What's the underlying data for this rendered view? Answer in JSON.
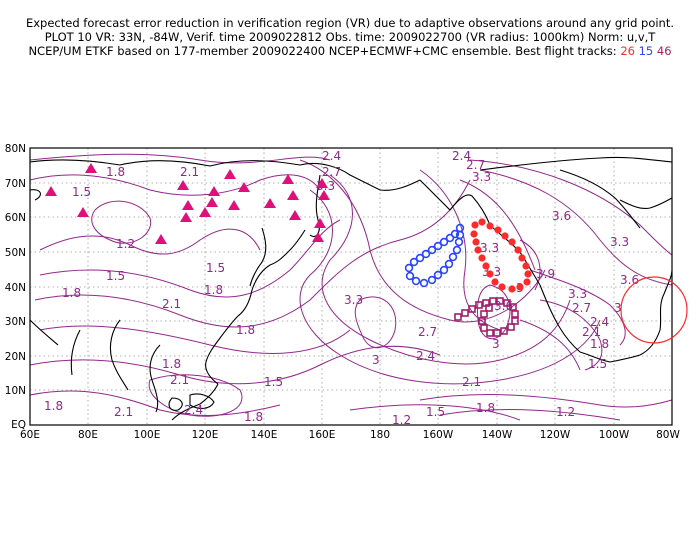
{
  "header": {
    "line1": "Expected forecast error reduction in verification region (VR) due to adaptive observations around any grid point.",
    "line2": "PLOT 10 VR: 33N, -84W, Verif. time 2009022812 Obs. time: 2009022700 (VR radius: 1000km) Norm: u,v,T",
    "line3_prefix": "NCEP/UM ETKF based on 177-member 2009022400 NCEP+ECMWF+CMC ensemble. Best flight tracks:",
    "track_a": "26",
    "track_b": "15",
    "track_c": "46"
  },
  "colors": {
    "contour": "#93288a",
    "track_26": "#ff2a2a",
    "track_15": "#2a46ff",
    "track_46": "#a0206a",
    "triangles": "#e0107a",
    "vr_circle": "#ff2a2a"
  },
  "map": {
    "lon_ticks": [
      "60E",
      "80E",
      "100E",
      "120E",
      "140E",
      "160E",
      "180",
      "160W",
      "140W",
      "120W",
      "100W",
      "80W"
    ],
    "lat_ticks": [
      "EQ",
      "10N",
      "20N",
      "30N",
      "40N",
      "50N",
      "60N",
      "70N",
      "80N"
    ]
  },
  "contour_labels": [
    "2.1",
    "2.4",
    "2.7",
    "2.4",
    "2.7",
    "3.3",
    "3.3",
    "1.8",
    "1.5",
    "1.2",
    "1.5",
    "1.8",
    "2.1",
    "1.5",
    "1.8",
    "1.8",
    "2.1",
    "1.8",
    "1.5",
    "1.8",
    "2.1",
    "2.4",
    "1.8",
    "1.2",
    "1.5",
    "1.8",
    "2.1",
    "2.4",
    "2.7",
    "3.3",
    "3",
    "3.3",
    "3.3",
    "3.6",
    "3.6",
    "3",
    "3.9",
    "3.6",
    "3.3",
    "3.3",
    "3",
    "2.7",
    "2.4",
    "2.1",
    "1.8",
    "1.5",
    "1.2",
    "3"
  ]
}
